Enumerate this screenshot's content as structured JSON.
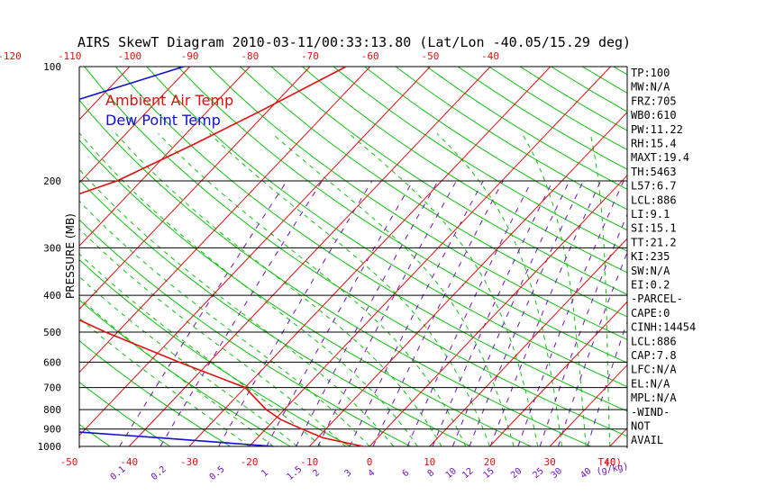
{
  "chart_data": {
    "type": "line",
    "title": "AIRS SkewT Diagram 2010-03-11/00:33:13.80 (Lat/Lon -40.05/15.29 deg)",
    "ylabel": "PRESSURE (MB)",
    "xlabel_bottom_temp": "T(C)",
    "xlabel_bottom_mixing": "(g/kg)",
    "legend": [
      {
        "label": "Ambient Air Temp",
        "color": "#e01010"
      },
      {
        "label": "Dew Point Temp",
        "color": "#1010d0"
      }
    ],
    "legend_position": "top-left",
    "y_scale": "log",
    "ylim": [
      1000,
      100
    ],
    "pressure_ticks": [
      100,
      200,
      300,
      400,
      500,
      600,
      700,
      800,
      900,
      1000
    ],
    "top_temp_ticks": [
      -120,
      -110,
      -100,
      -90,
      -80,
      -70,
      -60,
      -50,
      -40
    ],
    "bottom_temp_ticks": [
      -50,
      -40,
      -30,
      -20,
      -10,
      0,
      10,
      20,
      30,
      40
    ],
    "bottom_mixing_ticks": [
      "0.1",
      "0.2",
      "0.5",
      "1",
      "1.5",
      "2",
      "3",
      "4",
      "6",
      "8",
      "10",
      "12",
      "15",
      "20",
      "25",
      "30",
      "40"
    ],
    "series": [
      {
        "name": "Ambient Air Temp",
        "color": "#e01010",
        "points": [
          {
            "p": 100,
            "t": -64
          },
          {
            "p": 130,
            "t": -71
          },
          {
            "p": 160,
            "t": -77
          },
          {
            "p": 200,
            "t": -84
          },
          {
            "p": 250,
            "t": -96
          },
          {
            "p": 280,
            "t": -96
          },
          {
            "p": 300,
            "t": -95
          },
          {
            "p": 350,
            "t": -88
          },
          {
            "p": 400,
            "t": -80
          },
          {
            "p": 450,
            "t": -71
          },
          {
            "p": 500,
            "t": -62
          },
          {
            "p": 600,
            "t": -45
          },
          {
            "p": 700,
            "t": -30
          },
          {
            "p": 800,
            "t": -23
          },
          {
            "p": 850,
            "t": -19
          },
          {
            "p": 900,
            "t": -14
          },
          {
            "p": 950,
            "t": -9
          },
          {
            "p": 1000,
            "t": -1
          }
        ]
      },
      {
        "name": "Dew Point Temp",
        "color": "#1010d0",
        "points": [
          {
            "p": 100,
            "t": -91
          },
          {
            "p": 150,
            "t": -116
          },
          {
            "p": 200,
            "t": -123
          },
          {
            "p": 250,
            "t": -123
          },
          {
            "p": 300,
            "t": -121
          },
          {
            "p": 400,
            "t": -123
          },
          {
            "p": 500,
            "t": -128
          },
          {
            "p": 600,
            "t": -128
          },
          {
            "p": 700,
            "t": -110
          },
          {
            "p": 800,
            "t": -90
          },
          {
            "p": 850,
            "t": -78
          },
          {
            "p": 900,
            "t": -58
          },
          {
            "p": 950,
            "t": -36
          },
          {
            "p": 1000,
            "t": -16
          }
        ]
      }
    ]
  },
  "indices": [
    "TP:100",
    "MW:N/A",
    "FRZ:705",
    "WB0:610",
    "PW:11.22",
    "RH:15.4",
    "MAXT:19.4",
    "TH:5463",
    "L57:6.7",
    "LCL:886",
    "LI:9.1",
    "SI:15.1",
    "TT:21.2",
    "KI:235",
    "SW:N/A",
    "EI:0.2",
    "-PARCEL-",
    "CAPE:0",
    "CINH:14454",
    "LCL:886",
    "CAP:7.8",
    "LFC:N/A",
    "EL:N/A",
    "MPL:N/A",
    "-WIND-",
    "NOT",
    "AVAIL"
  ],
  "colors": {
    "isotherm": "#e01010",
    "dry_adiabat": "#10c010",
    "moist_adiabat": "#10c010",
    "mixing_ratio": "#7010c0",
    "axis": "#000000",
    "title": "#000000",
    "temp_tick_label": "#e01010",
    "mixing_tick_label": "#7010c0"
  }
}
